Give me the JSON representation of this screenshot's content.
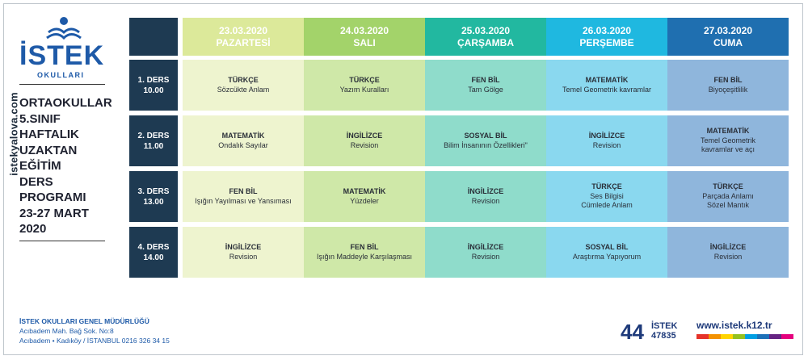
{
  "watermark": "istekyalova.com",
  "logo": {
    "word": "İSTEK",
    "sub": "OKULLARI",
    "color": "#1e5aa8"
  },
  "title_lines": [
    "ORTAOKULLAR",
    "5.SINIF",
    "HAFTALIK",
    "UZAKTAN",
    "EĞİTİM",
    "DERS",
    "PROGRAMI",
    "23-27 MART",
    "2020"
  ],
  "days": [
    {
      "date": "23.03.2020",
      "name": "PAZARTESİ",
      "header_color": "#dce99a",
      "cell_color": "#eef4cf"
    },
    {
      "date": "24.03.2020",
      "name": "SALI",
      "header_color": "#a3d36a",
      "cell_color": "#cfe8a8"
    },
    {
      "date": "25.03.2020",
      "name": "ÇARŞAMBA",
      "header_color": "#22b8a0",
      "cell_color": "#8fdccb"
    },
    {
      "date": "26.03.2020",
      "name": "PERŞEMBE",
      "header_color": "#1fb8e0",
      "cell_color": "#8ad8ef"
    },
    {
      "date": "27.03.2020",
      "name": "CUMA",
      "header_color": "#1f6fb0",
      "cell_color": "#8fb6dc"
    }
  ],
  "periods": [
    {
      "label": "1. DERS",
      "time": "10.00",
      "cells": [
        {
          "subject": "TÜRKÇE",
          "topic": "Sözcükte Anlam"
        },
        {
          "subject": "TÜRKÇE",
          "topic": "Yazım Kuralları"
        },
        {
          "subject": "FEN BİL",
          "topic": "Tam Gölge"
        },
        {
          "subject": "MATEMATİK",
          "topic": "Temel Geometrik kavramlar"
        },
        {
          "subject": "FEN BİL",
          "topic": "Biyoçeşitlilik"
        }
      ]
    },
    {
      "label": "2. DERS",
      "time": "11.00",
      "cells": [
        {
          "subject": "MATEMATİK",
          "topic": "Ondalık Sayılar"
        },
        {
          "subject": "İNGİLİZCE",
          "topic": "Revision"
        },
        {
          "subject": "SOSYAL BİL",
          "topic": "Bilim İnsanının Özellikleri\""
        },
        {
          "subject": "İNGİLİZCE",
          "topic": "Revision"
        },
        {
          "subject": "MATEMATİK",
          "topic": "Temel Geometrik",
          "topic2": "kavramlar ve açı"
        }
      ]
    },
    {
      "label": "3. DERS",
      "time": "13.00",
      "cells": [
        {
          "subject": "FEN BİL",
          "topic": "Işığın Yayılması ve Yansıması"
        },
        {
          "subject": "MATEMATİK",
          "topic": "Yüzdeler"
        },
        {
          "subject": "İNGİLİZCE",
          "topic": "Revision"
        },
        {
          "subject": "TÜRKÇE",
          "topic": "Ses Bilgisi",
          "topic2": "Cümlede Anlam"
        },
        {
          "subject": "TÜRKÇE",
          "topic": "Parçada Anlamı",
          "topic2": "Sözel Mantık"
        }
      ]
    },
    {
      "label": "4. DERS",
      "time": "14.00",
      "cells": [
        {
          "subject": "İNGİLİZCE",
          "topic": "Revision"
        },
        {
          "subject": "FEN BİL",
          "topic": "Işığın Maddeyle Karşılaşması"
        },
        {
          "subject": "İNGİLİZCE",
          "topic": "Revision"
        },
        {
          "subject": "SOSYAL BİL",
          "topic": "Araştırma Yapıyorum"
        },
        {
          "subject": "İNGİLİZCE",
          "topic": "Revision"
        }
      ]
    }
  ],
  "footer": {
    "org": "İSTEK OKULLARI GENEL MÜDÜRLÜĞÜ",
    "address1": "Acıbadem Mah. Bağ Sok. No:8",
    "address2": "Acıbadem • Kadıköy / İSTANBUL 0216 326 34 15"
  },
  "brand": {
    "big": "44",
    "name": "İSTEK",
    "phone": "47835"
  },
  "website": "www.istek.k12.tr",
  "stripe_colors": [
    "#e6332a",
    "#f39200",
    "#ffd400",
    "#95c11f",
    "#009fe3",
    "#1d71b8",
    "#662483",
    "#e5007e"
  ]
}
